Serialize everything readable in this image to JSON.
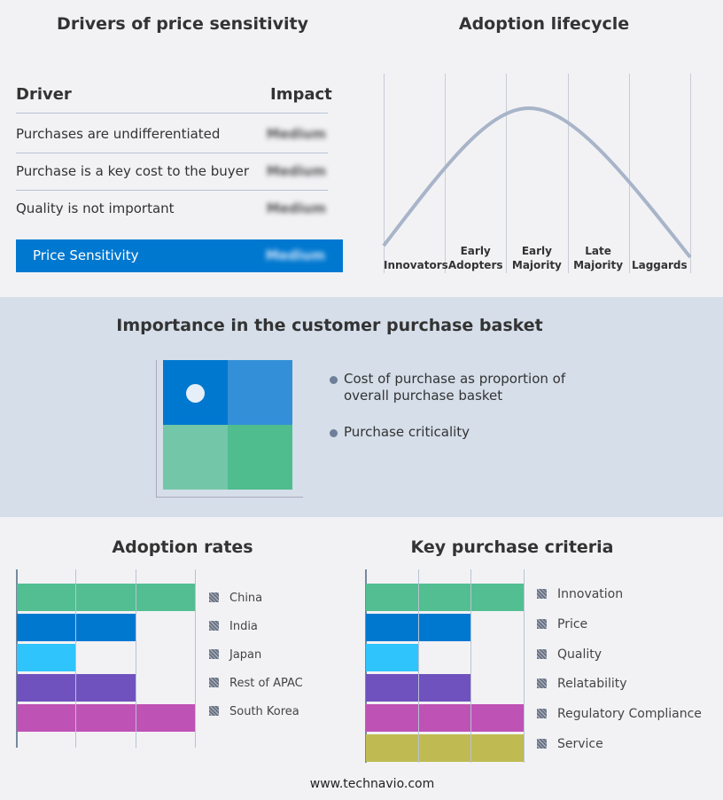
{
  "drivers": {
    "title": "Drivers of price sensitivity",
    "col_driver": "Driver",
    "col_impact": "Impact",
    "rows": [
      {
        "driver": "Purchases are undifferentiated",
        "impact": "Medium"
      },
      {
        "driver": "Purchase is a key cost to the buyer",
        "impact": "Medium"
      },
      {
        "driver": "Quality is not important",
        "impact": "Medium"
      }
    ],
    "summary": {
      "label": "Price Sensitivity",
      "impact": "Medium",
      "color": "#0078d0"
    }
  },
  "lifecycle": {
    "title": "Adoption lifecycle",
    "stages": [
      [
        "Innovators"
      ],
      [
        "Early",
        "Adopters"
      ],
      [
        "Early",
        "Majority"
      ],
      [
        "Late",
        "Majority"
      ],
      [
        "Laggards"
      ]
    ]
  },
  "basket": {
    "title": "Importance in the customer purchase basket",
    "items": [
      "Cost of purchase as proportion of overall purchase basket",
      "Purchase criticality"
    ]
  },
  "chart_data": [
    {
      "type": "bar",
      "title": "Adoption rates",
      "categories": [
        "China",
        "India",
        "Japan",
        "Rest of APAC",
        "South Korea"
      ],
      "values": [
        3,
        2,
        1,
        2,
        3
      ],
      "xlim": [
        0,
        3
      ],
      "grid": true,
      "legend": "right",
      "colors": [
        "#52be91",
        "#0078d0",
        "#2fc4fc",
        "#6f52be",
        "#bf52b5"
      ]
    },
    {
      "type": "bar",
      "title": "Key purchase criteria",
      "categories": [
        "Innovation",
        "Price",
        "Quality",
        "Relatability",
        "Regulatory Compliance",
        "Service"
      ],
      "values": [
        3,
        2,
        1,
        2,
        3,
        3
      ],
      "xlim": [
        0,
        3
      ],
      "grid": true,
      "legend": "right",
      "colors": [
        "#52be91",
        "#0078d0",
        "#2fc4fc",
        "#6f52be",
        "#bf52b5",
        "#bfbb52"
      ]
    }
  ],
  "footer": "www.technavio.com"
}
